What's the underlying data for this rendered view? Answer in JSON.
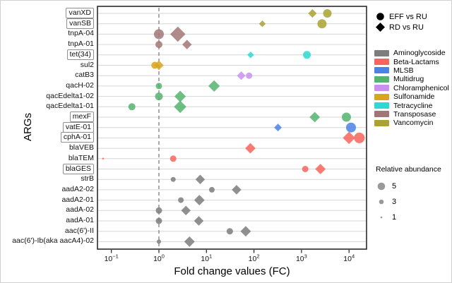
{
  "figure": {
    "background": "#ffffff",
    "panel_border_color": "#2b2b2b",
    "gridline_color": "#d6d6d6",
    "reference_line_color": "#7d7d7d"
  },
  "chart_data": {
    "type": "scatter",
    "title": "",
    "xlabel": "Fold change values (FC)",
    "ylabel": "ARGs",
    "x_scale": "log10",
    "xlim": [
      0.05,
      23000
    ],
    "grid": "horizontal-only",
    "reference_line_x": 1,
    "x_ticks": [
      {
        "value": 0.1,
        "base": "10",
        "exponent": "−1"
      },
      {
        "value": 1,
        "base": "10",
        "exponent": "0"
      },
      {
        "value": 10,
        "base": "10",
        "exponent": "1"
      },
      {
        "value": 100,
        "base": "10",
        "exponent": "2"
      },
      {
        "value": 1000,
        "base": "10",
        "exponent": "3"
      },
      {
        "value": 10000,
        "base": "10",
        "exponent": "4"
      }
    ],
    "genes": [
      {
        "name": "vanXD",
        "boxed": true
      },
      {
        "name": "vanSB",
        "boxed": true
      },
      {
        "name": "tnpA-04",
        "boxed": false
      },
      {
        "name": "tnpA-01",
        "boxed": false
      },
      {
        "name": "tet(34)",
        "boxed": true
      },
      {
        "name": "sul2",
        "boxed": false
      },
      {
        "name": "catB3",
        "boxed": false
      },
      {
        "name": "qacH-02",
        "boxed": false
      },
      {
        "name": "qacEdelta1-02",
        "boxed": false
      },
      {
        "name": "qacEdelta1-01",
        "boxed": false
      },
      {
        "name": "mexF",
        "boxed": true
      },
      {
        "name": "vatE-01",
        "boxed": true
      },
      {
        "name": "cphA-01",
        "boxed": true
      },
      {
        "name": "blaVEB",
        "boxed": false
      },
      {
        "name": "blaTEM",
        "boxed": false
      },
      {
        "name": "blaGES",
        "boxed": true
      },
      {
        "name": "strB",
        "boxed": false
      },
      {
        "name": "aadA2-02",
        "boxed": false
      },
      {
        "name": "aadA2-01",
        "boxed": false
      },
      {
        "name": "aadA-02",
        "boxed": false
      },
      {
        "name": "aadA-01",
        "boxed": false
      },
      {
        "name": "aac(6')-II",
        "boxed": false
      },
      {
        "name": "aac(6')-Ib(aka aacA4)-02",
        "boxed": false
      }
    ],
    "series_legend": [
      {
        "label": "EFF vs RU",
        "marker": "circle"
      },
      {
        "label": "RD vs RU",
        "marker": "diamond"
      }
    ],
    "classes": [
      {
        "name": "Aminoglycoside",
        "color": "#7d7d7d"
      },
      {
        "name": "Beta-Lactams",
        "color": "#f8655c"
      },
      {
        "name": "MLSB",
        "color": "#4b82e8"
      },
      {
        "name": "Multidrug",
        "color": "#55b46f"
      },
      {
        "name": "Chloramphenicol",
        "color": "#cb90ee"
      },
      {
        "name": "Sulfonamide",
        "color": "#d9a51f"
      },
      {
        "name": "Tetracycline",
        "color": "#2cd9d3"
      },
      {
        "name": "Transposase",
        "color": "#a17775"
      },
      {
        "name": "Vancomycin",
        "color": "#aaa233"
      }
    ],
    "size_legend": {
      "title": "Relative abundance",
      "items": [
        {
          "value": 5
        },
        {
          "value": 3
        },
        {
          "value": 1
        }
      ]
    },
    "points": [
      {
        "gene": "vanXD",
        "comparison": "RD vs RU",
        "fc": 1700,
        "abundance": 4.2,
        "class": "Vancomycin"
      },
      {
        "gene": "vanXD",
        "comparison": "EFF vs RU",
        "fc": 3500,
        "abundance": 5.7,
        "class": "Vancomycin"
      },
      {
        "gene": "vanSB",
        "comparison": "RD vs RU",
        "fc": 150,
        "abundance": 3.2,
        "class": "Vancomycin"
      },
      {
        "gene": "vanSB",
        "comparison": "EFF vs RU",
        "fc": 2700,
        "abundance": 6.2,
        "class": "Vancomycin"
      },
      {
        "gene": "tnpA-04",
        "comparison": "EFF vs RU",
        "fc": 1.0,
        "abundance": 6.7,
        "class": "Transposase"
      },
      {
        "gene": "tnpA-04",
        "comparison": "RD vs RU",
        "fc": 2.5,
        "abundance": 7.7,
        "class": "Transposase"
      },
      {
        "gene": "tnpA-01",
        "comparison": "EFF vs RU",
        "fc": 1.0,
        "abundance": 4.7,
        "class": "Transposase"
      },
      {
        "gene": "tnpA-01",
        "comparison": "RD vs RU",
        "fc": 3.9,
        "abundance": 4.7,
        "class": "Transposase"
      },
      {
        "gene": "tet(34)",
        "comparison": "RD vs RU",
        "fc": 85,
        "abundance": 3.2,
        "class": "Tetracycline"
      },
      {
        "gene": "tet(34)",
        "comparison": "EFF vs RU",
        "fc": 1300,
        "abundance": 5.2,
        "class": "Tetracycline"
      },
      {
        "gene": "sul2",
        "comparison": "EFF vs RU",
        "fc": 0.82,
        "abundance": 4.7,
        "class": "Sulfonamide"
      },
      {
        "gene": "sul2",
        "comparison": "RD vs RU",
        "fc": 1.0,
        "abundance": 4.7,
        "class": "Sulfonamide"
      },
      {
        "gene": "catB3",
        "comparison": "RD vs RU",
        "fc": 54,
        "abundance": 4.2,
        "class": "Chloramphenicol"
      },
      {
        "gene": "catB3",
        "comparison": "EFF vs RU",
        "fc": 79,
        "abundance": 4.2,
        "class": "Chloramphenicol"
      },
      {
        "gene": "qacH-02",
        "comparison": "EFF vs RU",
        "fc": 1.0,
        "abundance": 4.2,
        "class": "Multidrug"
      },
      {
        "gene": "qacH-02",
        "comparison": "RD vs RU",
        "fc": 14.5,
        "abundance": 5.7,
        "class": "Multidrug"
      },
      {
        "gene": "qacEdelta1-02",
        "comparison": "EFF vs RU",
        "fc": 1.0,
        "abundance": 5.2,
        "class": "Multidrug"
      },
      {
        "gene": "qacEdelta1-02",
        "comparison": "RD vs RU",
        "fc": 2.8,
        "abundance": 5.7,
        "class": "Multidrug"
      },
      {
        "gene": "qacEdelta1-01",
        "comparison": "EFF vs RU",
        "fc": 0.27,
        "abundance": 4.7,
        "class": "Multidrug"
      },
      {
        "gene": "qacEdelta1-01",
        "comparison": "RD vs RU",
        "fc": 2.8,
        "abundance": 6.2,
        "class": "Multidrug"
      },
      {
        "gene": "mexF",
        "comparison": "RD vs RU",
        "fc": 1900,
        "abundance": 5.2,
        "class": "Multidrug"
      },
      {
        "gene": "mexF",
        "comparison": "EFF vs RU",
        "fc": 8800,
        "abundance": 6.2,
        "class": "Multidrug"
      },
      {
        "gene": "vatE-01",
        "comparison": "RD vs RU",
        "fc": 320,
        "abundance": 3.7,
        "class": "MLSB"
      },
      {
        "gene": "vatE-01",
        "comparison": "EFF vs RU",
        "fc": 11000,
        "abundance": 6.7,
        "class": "MLSB"
      },
      {
        "gene": "cphA-01",
        "comparison": "RD vs RU",
        "fc": 10000,
        "abundance": 6.2,
        "class": "Beta-Lactams"
      },
      {
        "gene": "cphA-01",
        "comparison": "EFF vs RU",
        "fc": 16500,
        "abundance": 7.2,
        "class": "Beta-Lactams"
      },
      {
        "gene": "blaVEB",
        "comparison": "RD vs RU",
        "fc": 84,
        "abundance": 5.2,
        "class": "Beta-Lactams"
      },
      {
        "gene": "blaTEM",
        "comparison": "RD vs RU",
        "fc": 0.067,
        "abundance": 0.9,
        "class": "Beta-Lactams"
      },
      {
        "gene": "blaTEM",
        "comparison": "EFF vs RU",
        "fc": 2.0,
        "abundance": 4.2,
        "class": "Beta-Lactams"
      },
      {
        "gene": "blaGES",
        "comparison": "EFF vs RU",
        "fc": 1200,
        "abundance": 4.2,
        "class": "Beta-Lactams"
      },
      {
        "gene": "blaGES",
        "comparison": "RD vs RU",
        "fc": 2500,
        "abundance": 5.2,
        "class": "Beta-Lactams"
      },
      {
        "gene": "strB",
        "comparison": "EFF vs RU",
        "fc": 2.0,
        "abundance": 3.2,
        "class": "Aminoglycoside"
      },
      {
        "gene": "strB",
        "comparison": "RD vs RU",
        "fc": 7.4,
        "abundance": 4.7,
        "class": "Aminoglycoside"
      },
      {
        "gene": "aadA2-02",
        "comparison": "EFF vs RU",
        "fc": 13,
        "abundance": 3.7,
        "class": "Aminoglycoside"
      },
      {
        "gene": "aadA2-02",
        "comparison": "RD vs RU",
        "fc": 43,
        "abundance": 4.7,
        "class": "Aminoglycoside"
      },
      {
        "gene": "aadA2-01",
        "comparison": "EFF vs RU",
        "fc": 2.9,
        "abundance": 3.7,
        "class": "Aminoglycoside"
      },
      {
        "gene": "aadA2-01",
        "comparison": "RD vs RU",
        "fc": 7.1,
        "abundance": 5.2,
        "class": "Aminoglycoside"
      },
      {
        "gene": "aadA-02",
        "comparison": "EFF vs RU",
        "fc": 1.0,
        "abundance": 4.2,
        "class": "Aminoglycoside"
      },
      {
        "gene": "aadA-02",
        "comparison": "RD vs RU",
        "fc": 3.7,
        "abundance": 4.7,
        "class": "Aminoglycoside"
      },
      {
        "gene": "aadA-01",
        "comparison": "EFF vs RU",
        "fc": 1.0,
        "abundance": 4.2,
        "class": "Aminoglycoside"
      },
      {
        "gene": "aadA-01",
        "comparison": "RD vs RU",
        "fc": 6.9,
        "abundance": 4.7,
        "class": "Aminoglycoside"
      },
      {
        "gene": "aac(6')-II",
        "comparison": "EFF vs RU",
        "fc": 31,
        "abundance": 4.2,
        "class": "Aminoglycoside"
      },
      {
        "gene": "aac(6')-II",
        "comparison": "RD vs RU",
        "fc": 67,
        "abundance": 5.2,
        "class": "Aminoglycoside"
      },
      {
        "gene": "aac(6')-Ib(aka aacA4)-02",
        "comparison": "EFF vs RU",
        "fc": 1.0,
        "abundance": 2.7,
        "class": "Aminoglycoside"
      },
      {
        "gene": "aac(6')-Ib(aka aacA4)-02",
        "comparison": "RD vs RU",
        "fc": 4.4,
        "abundance": 5.2,
        "class": "Aminoglycoside"
      }
    ]
  }
}
